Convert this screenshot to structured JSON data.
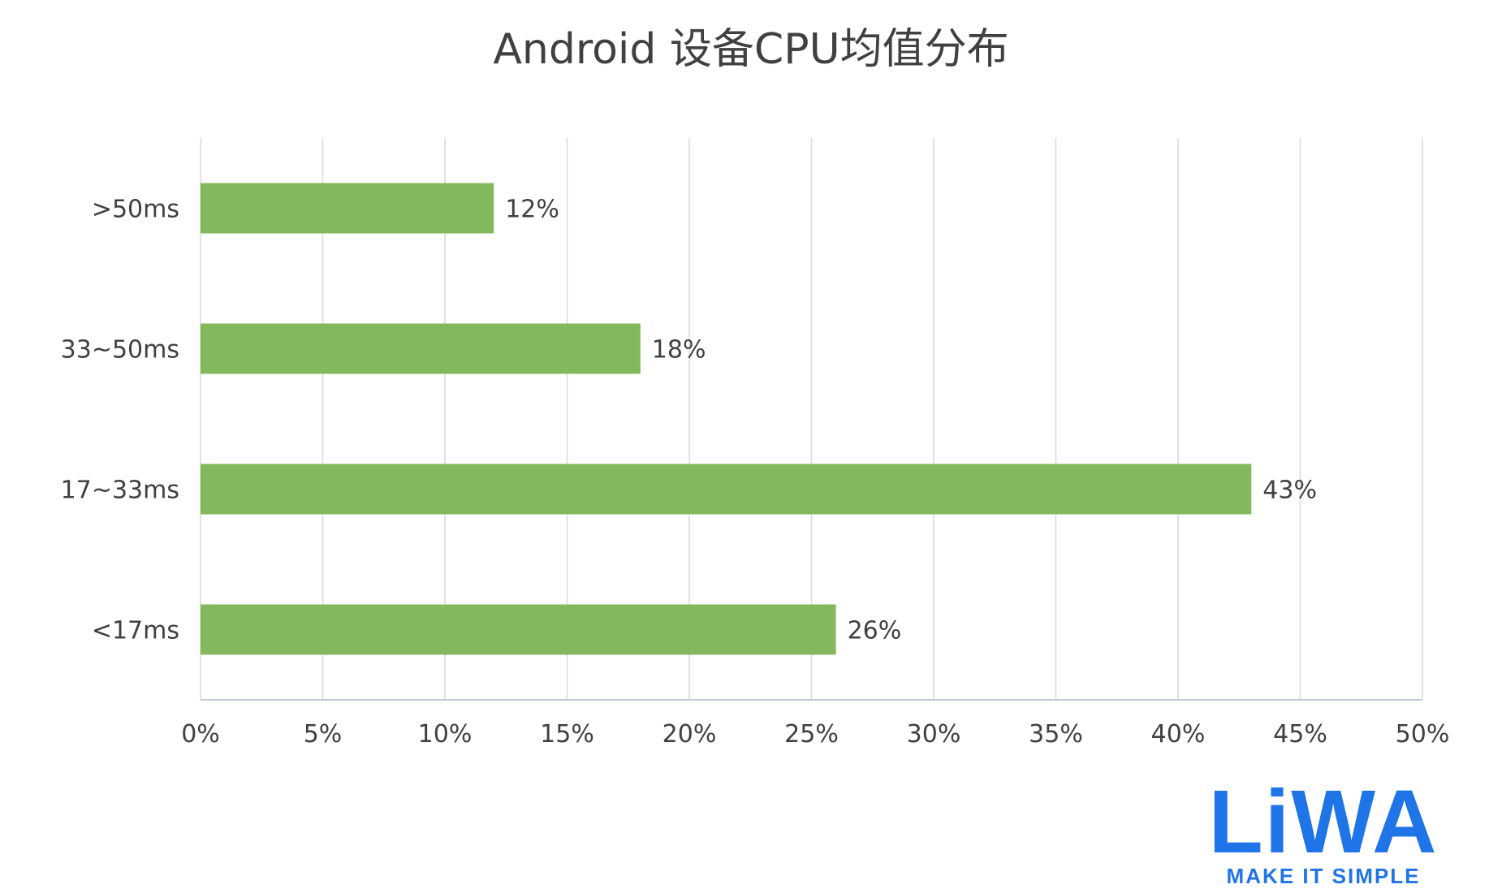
{
  "chart_data": {
    "type": "bar",
    "orientation": "horizontal",
    "title": "Android 设备CPU均值分布",
    "categories": [
      ">50ms",
      "33~50ms",
      "17~33ms",
      "<17ms"
    ],
    "values": [
      12,
      18,
      43,
      26
    ],
    "data_labels": [
      "12%",
      "18%",
      "43%",
      "26%"
    ],
    "xlim": [
      0,
      50
    ],
    "x_ticks": [
      0,
      5,
      10,
      15,
      20,
      25,
      30,
      35,
      40,
      45,
      50
    ],
    "x_tick_labels": [
      "0%",
      "5%",
      "10%",
      "15%",
      "20%",
      "25%",
      "30%",
      "35%",
      "40%",
      "45%",
      "50%"
    ],
    "grid": "vertical",
    "bar_color": "#84b85c",
    "grid_color": "#d9d9d9",
    "axis_color": "#bfc8d6",
    "text_color": "#404040"
  },
  "brand": {
    "logo_text": "LiWA",
    "tagline": "MAKE IT SIMPLE",
    "color": "#1f74e8"
  }
}
